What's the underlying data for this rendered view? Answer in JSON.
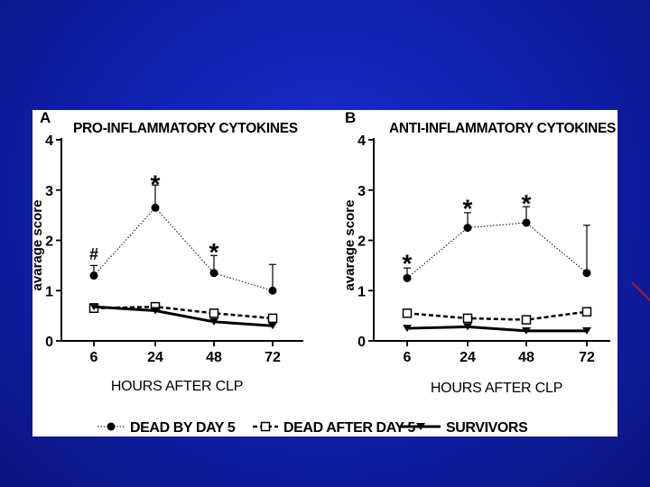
{
  "colors": {
    "background": "#1225b5",
    "panel": "#ffffff",
    "ink": "#000000"
  },
  "chart_data": [
    {
      "type": "line",
      "panel_label": "A",
      "title": "PRO-INFLAMMATORY CYTOKINES",
      "xlabel": "HOURS AFTER CLP",
      "ylabel": "avarage score",
      "x": [
        6,
        24,
        48,
        72
      ],
      "x_tick_labels": [
        "6",
        "24",
        "48",
        "72"
      ],
      "ylim": [
        0,
        4
      ],
      "y_ticks": [
        0,
        1,
        2,
        3,
        4
      ],
      "y_tick_labels": [
        "0",
        "1",
        "2",
        "3",
        "4"
      ],
      "series": [
        {
          "name": "DEAD BY DAY 5",
          "values": [
            1.3,
            2.65,
            1.35,
            1.0
          ],
          "error_up": [
            0.2,
            0.45,
            0.35,
            0.52
          ]
        },
        {
          "name": "DEAD AFTER DAY 5",
          "values": [
            0.65,
            0.68,
            0.55,
            0.45
          ],
          "error_up": [
            0,
            0,
            0,
            0
          ]
        },
        {
          "name": "SURVIVORS",
          "values": [
            0.68,
            0.6,
            0.38,
            0.3
          ],
          "error_up": [
            0,
            0,
            0,
            0
          ]
        }
      ],
      "annotations": [
        {
          "text": "#",
          "x": 6,
          "y": 1.72
        },
        {
          "text": "*",
          "x": 24,
          "y": 3.2
        },
        {
          "text": "*",
          "x": 48,
          "y": 1.85
        }
      ],
      "grid": false
    },
    {
      "type": "line",
      "panel_label": "B",
      "title": "ANTI-INFLAMMATORY CYTOKINES",
      "xlabel": "HOURS AFTER CLP",
      "ylabel": "avarage score",
      "x": [
        6,
        24,
        48,
        72
      ],
      "x_tick_labels": [
        "6",
        "24",
        "48",
        "72"
      ],
      "ylim": [
        0,
        4
      ],
      "y_ticks": [
        0,
        1,
        2,
        3,
        4
      ],
      "y_tick_labels": [
        "0",
        "1",
        "2",
        "3",
        "4"
      ],
      "series": [
        {
          "name": "DEAD BY DAY 5",
          "values": [
            1.25,
            2.25,
            2.35,
            1.35
          ],
          "error_up": [
            0.2,
            0.3,
            0.32,
            0.95
          ]
        },
        {
          "name": "DEAD AFTER DAY 5",
          "values": [
            0.55,
            0.45,
            0.42,
            0.58
          ],
          "error_up": [
            0,
            0,
            0,
            0
          ]
        },
        {
          "name": "SURVIVORS",
          "values": [
            0.25,
            0.28,
            0.2,
            0.2
          ],
          "error_up": [
            0,
            0,
            0,
            0
          ]
        }
      ],
      "annotations": [
        {
          "text": "*",
          "x": 6,
          "y": 1.62
        },
        {
          "text": "*",
          "x": 24,
          "y": 2.72
        },
        {
          "text": "*",
          "x": 48,
          "y": 2.82
        }
      ],
      "grid": false
    }
  ],
  "legend": {
    "placement": "bottom",
    "items": [
      {
        "label": "DEAD BY DAY 5",
        "marker": "filled-circle",
        "line": "dotted"
      },
      {
        "label": "DEAD AFTER DAY 5",
        "marker": "open-square",
        "line": "dashed"
      },
      {
        "label": "SURVIVORS",
        "marker": "filled-triangle-down",
        "line": "solid"
      }
    ]
  }
}
